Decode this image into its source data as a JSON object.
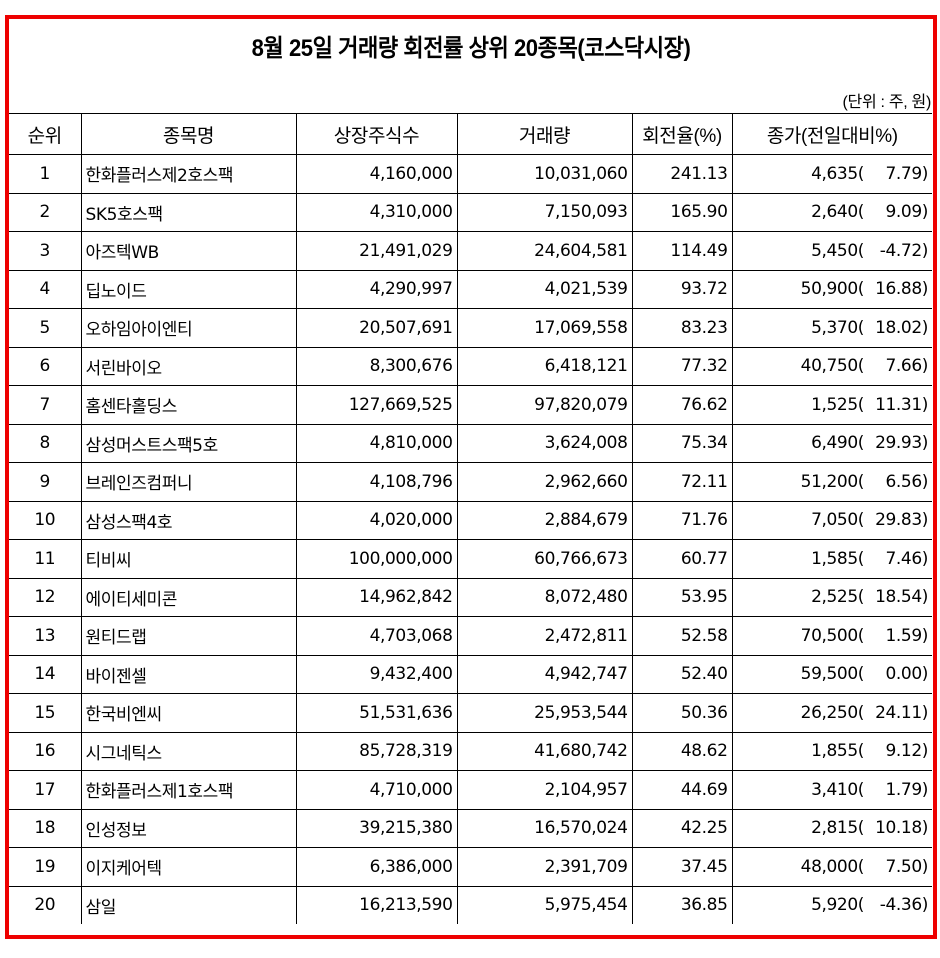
{
  "title": "8월 25일 거래량 회전률 상위 20종목(코스닥시장)",
  "unit_note": "(단위 : 주, 원)",
  "colors": {
    "frame_border": "#ee0000",
    "grid_line": "#000000",
    "background": "#ffffff"
  },
  "table": {
    "headers": [
      "순위",
      "종목명",
      "상장주식수",
      "거래량",
      "회전율(%)",
      "종가(전일대비%)"
    ],
    "rows": [
      {
        "rank": "1",
        "name": "한화플러스제2호스팩",
        "listed_shares": "4,160,000",
        "volume": "10,031,060",
        "turnover": "241.13",
        "close": "4,635",
        "change": "7.79"
      },
      {
        "rank": "2",
        "name": "SK5호스팩",
        "listed_shares": "4,310,000",
        "volume": "7,150,093",
        "turnover": "165.90",
        "close": "2,640",
        "change": "9.09"
      },
      {
        "rank": "3",
        "name": "아즈텍WB",
        "listed_shares": "21,491,029",
        "volume": "24,604,581",
        "turnover": "114.49",
        "close": "5,450",
        "change": "-4.72"
      },
      {
        "rank": "4",
        "name": "딥노이드",
        "listed_shares": "4,290,997",
        "volume": "4,021,539",
        "turnover": "93.72",
        "close": "50,900",
        "change": "16.88"
      },
      {
        "rank": "5",
        "name": "오하임아이엔티",
        "listed_shares": "20,507,691",
        "volume": "17,069,558",
        "turnover": "83.23",
        "close": "5,370",
        "change": "18.02"
      },
      {
        "rank": "6",
        "name": "서린바이오",
        "listed_shares": "8,300,676",
        "volume": "6,418,121",
        "turnover": "77.32",
        "close": "40,750",
        "change": "7.66"
      },
      {
        "rank": "7",
        "name": "홈센타홀딩스",
        "listed_shares": "127,669,525",
        "volume": "97,820,079",
        "turnover": "76.62",
        "close": "1,525",
        "change": "11.31"
      },
      {
        "rank": "8",
        "name": "삼성머스트스팩5호",
        "listed_shares": "4,810,000",
        "volume": "3,624,008",
        "turnover": "75.34",
        "close": "6,490",
        "change": "29.93"
      },
      {
        "rank": "9",
        "name": "브레인즈컴퍼니",
        "listed_shares": "4,108,796",
        "volume": "2,962,660",
        "turnover": "72.11",
        "close": "51,200",
        "change": "6.56"
      },
      {
        "rank": "10",
        "name": "삼성스팩4호",
        "listed_shares": "4,020,000",
        "volume": "2,884,679",
        "turnover": "71.76",
        "close": "7,050",
        "change": "29.83"
      },
      {
        "rank": "11",
        "name": "티비씨",
        "listed_shares": "100,000,000",
        "volume": "60,766,673",
        "turnover": "60.77",
        "close": "1,585",
        "change": "7.46"
      },
      {
        "rank": "12",
        "name": "에이티세미콘",
        "listed_shares": "14,962,842",
        "volume": "8,072,480",
        "turnover": "53.95",
        "close": "2,525",
        "change": "18.54"
      },
      {
        "rank": "13",
        "name": "원티드랩",
        "listed_shares": "4,703,068",
        "volume": "2,472,811",
        "turnover": "52.58",
        "close": "70,500",
        "change": "1.59"
      },
      {
        "rank": "14",
        "name": "바이젠셀",
        "listed_shares": "9,432,400",
        "volume": "4,942,747",
        "turnover": "52.40",
        "close": "59,500",
        "change": "0.00"
      },
      {
        "rank": "15",
        "name": "한국비엔씨",
        "listed_shares": "51,531,636",
        "volume": "25,953,544",
        "turnover": "50.36",
        "close": "26,250",
        "change": "24.11"
      },
      {
        "rank": "16",
        "name": "시그네틱스",
        "listed_shares": "85,728,319",
        "volume": "41,680,742",
        "turnover": "48.62",
        "close": "1,855",
        "change": "9.12"
      },
      {
        "rank": "17",
        "name": "한화플러스제1호스팩",
        "listed_shares": "4,710,000",
        "volume": "2,104,957",
        "turnover": "44.69",
        "close": "3,410",
        "change": "1.79"
      },
      {
        "rank": "18",
        "name": "인성정보",
        "listed_shares": "39,215,380",
        "volume": "16,570,024",
        "turnover": "42.25",
        "close": "2,815",
        "change": "10.18"
      },
      {
        "rank": "19",
        "name": "이지케어텍",
        "listed_shares": "6,386,000",
        "volume": "2,391,709",
        "turnover": "37.45",
        "close": "48,000",
        "change": "7.50"
      },
      {
        "rank": "20",
        "name": "삼일",
        "listed_shares": "16,213,590",
        "volume": "5,975,454",
        "turnover": "36.85",
        "close": "5,920",
        "change": "-4.36"
      }
    ]
  }
}
